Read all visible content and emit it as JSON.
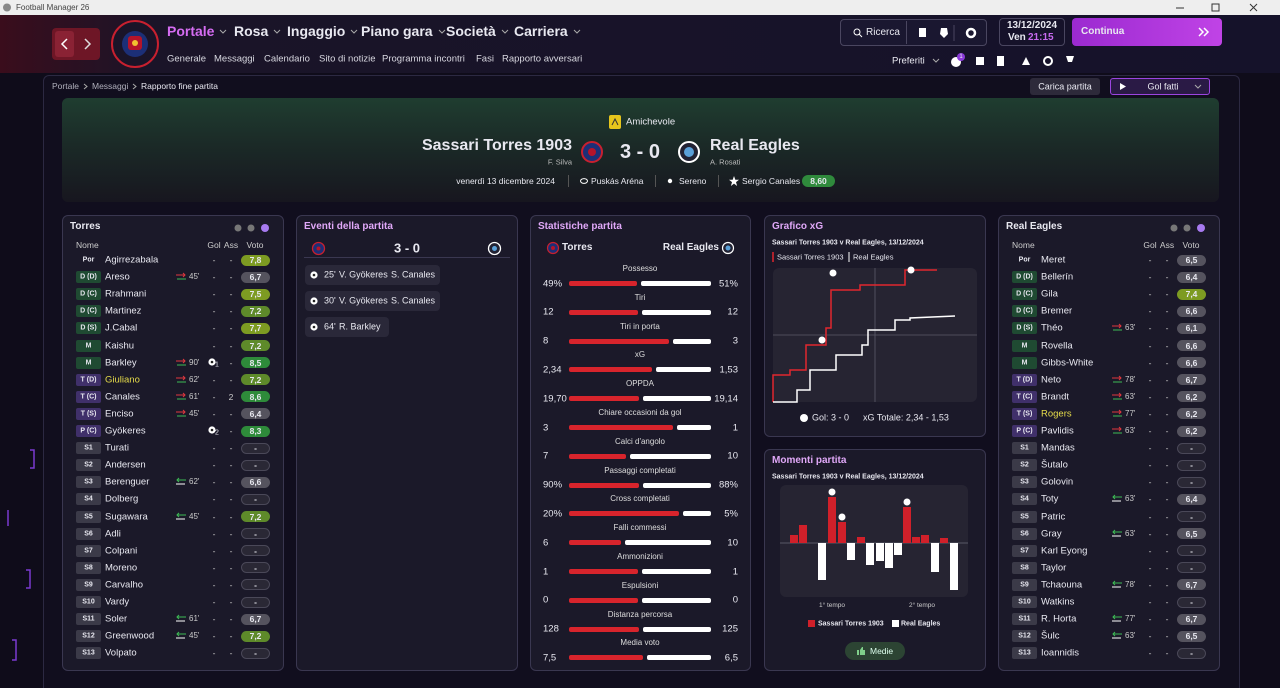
{
  "window": {
    "title": "Football Manager 26"
  },
  "nav": {
    "menus": [
      "Portale",
      "Rosa",
      "Ingaggio",
      "Piano gara",
      "Società",
      "Carriera"
    ],
    "submenu": [
      "Generale",
      "Messaggi",
      "Calendario",
      "Sito di notizie",
      "Programma incontri",
      "Fasi",
      "Rapporto avversari"
    ],
    "search": "Ricerca",
    "date": "13/12/2024",
    "day": "Ven",
    "time": "21:15",
    "continue": "Continua",
    "favorites": "Preferiti",
    "badge": "1"
  },
  "breadcrumb": [
    "Portale",
    "Messaggi",
    "Rapporto fine partita"
  ],
  "actions": {
    "load_match": "Carica partita",
    "goals": "Gol fatti"
  },
  "match": {
    "competition": "Amichevole",
    "home": "Sassari Torres 1903",
    "home_manager": "F. Silva",
    "score": "3 - 0",
    "away": "Real Eagles",
    "away_manager": "A. Rosati",
    "date": "venerdì 13 dicembre 2024",
    "stadium": "Puskás Aréna",
    "weather": "Sereno",
    "player_of_match": "Sergio Canales",
    "pom_rating": "8,60"
  },
  "lineup_columns": [
    "Nome",
    "Gol",
    "Ass",
    "Voto"
  ],
  "home_lineup": {
    "title": "Torres",
    "players": [
      {
        "pos": "Por",
        "name": "Agirrezabala",
        "goals": "-",
        "assists": "-",
        "rating": "7,8"
      },
      {
        "pos": "D (D)",
        "name": "Areso",
        "sub": "45'",
        "goals": "-",
        "assists": "-",
        "rating": "6,7"
      },
      {
        "pos": "D (C)",
        "name": "Rrahmani",
        "goals": "-",
        "assists": "-",
        "rating": "7,5"
      },
      {
        "pos": "D (C)",
        "name": "Martinez",
        "goals": "-",
        "assists": "-",
        "rating": "7,2"
      },
      {
        "pos": "D (S)",
        "name": "J.Cabal",
        "goals": "-",
        "assists": "-",
        "rating": "7,7"
      },
      {
        "pos": "M",
        "name": "Kaishu",
        "goals": "-",
        "assists": "-",
        "rating": "7,2"
      },
      {
        "pos": "M",
        "name": "Barkley",
        "sub": "90'",
        "goals": "1",
        "assists": "-",
        "rating": "8,5"
      },
      {
        "pos": "T (D)",
        "name": "Giuliano",
        "highlight": true,
        "sub": "62'",
        "goals": "-",
        "assists": "-",
        "rating": "7,2"
      },
      {
        "pos": "T (C)",
        "name": "Canales",
        "sub": "61'",
        "goals": "-",
        "assists": "2",
        "rating": "8,6"
      },
      {
        "pos": "T (S)",
        "name": "Enciso",
        "sub": "45'",
        "goals": "-",
        "assists": "-",
        "rating": "6,4"
      },
      {
        "pos": "P (C)",
        "name": "Gyökeres",
        "goals": "2",
        "assists": "-",
        "rating": "8,3"
      },
      {
        "pos": "S1",
        "name": "Turati",
        "goals": "-",
        "assists": "-",
        "rating": "-"
      },
      {
        "pos": "S2",
        "name": "Andersen",
        "goals": "-",
        "assists": "-",
        "rating": "-"
      },
      {
        "pos": "S3",
        "name": "Berenguer",
        "sub": "62'",
        "goals": "-",
        "assists": "-",
        "rating": "6,6"
      },
      {
        "pos": "S4",
        "name": "Dolberg",
        "goals": "-",
        "assists": "-",
        "rating": "-"
      },
      {
        "pos": "S5",
        "name": "Sugawara",
        "sub": "45'",
        "goals": "-",
        "assists": "-",
        "rating": "7,2"
      },
      {
        "pos": "S6",
        "name": "Adli",
        "goals": "-",
        "assists": "-",
        "rating": "-"
      },
      {
        "pos": "S7",
        "name": "Colpani",
        "goals": "-",
        "assists": "-",
        "rating": "-"
      },
      {
        "pos": "S8",
        "name": "Moreno",
        "goals": "-",
        "assists": "-",
        "rating": "-"
      },
      {
        "pos": "S9",
        "name": "Carvalho",
        "goals": "-",
        "assists": "-",
        "rating": "-"
      },
      {
        "pos": "S10",
        "name": "Vardy",
        "goals": "-",
        "assists": "-",
        "rating": "-"
      },
      {
        "pos": "S11",
        "name": "Soler",
        "sub": "61'",
        "goals": "-",
        "assists": "-",
        "rating": "6,7"
      },
      {
        "pos": "S12",
        "name": "Greenwood",
        "sub": "45'",
        "goals": "-",
        "assists": "-",
        "rating": "7,2"
      },
      {
        "pos": "S13",
        "name": "Volpato",
        "goals": "-",
        "assists": "-",
        "rating": "-"
      }
    ]
  },
  "away_lineup": {
    "title": "Real Eagles",
    "players": [
      {
        "pos": "Por",
        "name": "Meret",
        "goals": "-",
        "assists": "-",
        "rating": "6,5"
      },
      {
        "pos": "D (D)",
        "name": "Bellerín",
        "goals": "-",
        "assists": "-",
        "rating": "6,4"
      },
      {
        "pos": "D (C)",
        "name": "Gila",
        "goals": "-",
        "assists": "-",
        "rating": "7,4"
      },
      {
        "pos": "D (C)",
        "name": "Bremer",
        "goals": "-",
        "assists": "-",
        "rating": "6,6"
      },
      {
        "pos": "D (S)",
        "name": "Théo",
        "sub": "63'",
        "goals": "-",
        "assists": "-",
        "rating": "6,1"
      },
      {
        "pos": "M",
        "name": "Rovella",
        "goals": "-",
        "assists": "-",
        "rating": "6,6"
      },
      {
        "pos": "M",
        "name": "Gibbs-White",
        "goals": "-",
        "assists": "-",
        "rating": "6,6"
      },
      {
        "pos": "T (D)",
        "name": "Neto",
        "sub": "78'",
        "goals": "-",
        "assists": "-",
        "rating": "6,7"
      },
      {
        "pos": "T (C)",
        "name": "Brandt",
        "sub": "63'",
        "goals": "-",
        "assists": "-",
        "rating": "6,2"
      },
      {
        "pos": "T (S)",
        "name": "Rogers",
        "highlight": true,
        "sub": "77'",
        "goals": "-",
        "assists": "-",
        "rating": "6,2"
      },
      {
        "pos": "P (C)",
        "name": "Pavlidis",
        "sub": "63'",
        "goals": "-",
        "assists": "-",
        "rating": "6,2"
      },
      {
        "pos": "S1",
        "name": "Mandas",
        "goals": "-",
        "assists": "-",
        "rating": "-"
      },
      {
        "pos": "S2",
        "name": "Šutalo",
        "goals": "-",
        "assists": "-",
        "rating": "-"
      },
      {
        "pos": "S3",
        "name": "Golovin",
        "goals": "-",
        "assists": "-",
        "rating": "-"
      },
      {
        "pos": "S4",
        "name": "Toty",
        "sub": "63'",
        "goals": "-",
        "assists": "-",
        "rating": "6,4"
      },
      {
        "pos": "S5",
        "name": "Patric",
        "goals": "-",
        "assists": "-",
        "rating": "-"
      },
      {
        "pos": "S6",
        "name": "Gray",
        "sub": "63'",
        "goals": "-",
        "assists": "-",
        "rating": "6,5"
      },
      {
        "pos": "S7",
        "name": "Karl Eyong",
        "goals": "-",
        "assists": "-",
        "rating": "-"
      },
      {
        "pos": "S8",
        "name": "Taylor",
        "goals": "-",
        "assists": "-",
        "rating": "-"
      },
      {
        "pos": "S9",
        "name": "Tchaouna",
        "sub": "78'",
        "goals": "-",
        "assists": "-",
        "rating": "6,7"
      },
      {
        "pos": "S10",
        "name": "Watkins",
        "goals": "-",
        "assists": "-",
        "rating": "-"
      },
      {
        "pos": "S11",
        "name": "R. Horta",
        "sub": "77'",
        "goals": "-",
        "assists": "-",
        "rating": "6,7"
      },
      {
        "pos": "S12",
        "name": "Šulc",
        "sub": "63'",
        "goals": "-",
        "assists": "-",
        "rating": "6,5"
      },
      {
        "pos": "S13",
        "name": "Ioannidis",
        "goals": "-",
        "assists": "-",
        "rating": "-"
      }
    ]
  },
  "events": {
    "title": "Eventi della partita",
    "score": "3 - 0",
    "goals": [
      {
        "minute": "25'",
        "scorer": "V. Gyökeres",
        "assist": "S. Canales"
      },
      {
        "minute": "30'",
        "scorer": "V. Gyökeres",
        "assist": "S. Canales"
      },
      {
        "minute": "64'",
        "scorer": "R. Barkley"
      }
    ]
  },
  "stats": {
    "title": "Statistiche partita",
    "home": "Torres",
    "away": "Real Eagles",
    "rows": [
      {
        "label": "Possesso",
        "home": "49%",
        "away": "51%"
      },
      {
        "label": "Tiri",
        "home": "12",
        "away": "12"
      },
      {
        "label": "Tiri in porta",
        "home": "8",
        "away": "3"
      },
      {
        "label": "xG",
        "home": "2,34",
        "away": "1,53"
      },
      {
        "label": "OPPDA",
        "home": "19,70",
        "away": "19,14"
      },
      {
        "label": "Chiare occasioni da gol",
        "home": "3",
        "away": "1"
      },
      {
        "label": "Calci d'angolo",
        "home": "7",
        "away": "10"
      },
      {
        "label": "Passaggi completati",
        "home": "90%",
        "away": "88%"
      },
      {
        "label": "Cross completati",
        "home": "20%",
        "away": "5%"
      },
      {
        "label": "Falli commessi",
        "home": "6",
        "away": "10"
      },
      {
        "label": "Ammonizioni",
        "home": "1",
        "away": "1"
      },
      {
        "label": "Espulsioni",
        "home": "0",
        "away": "0"
      },
      {
        "label": "Distanza percorsa",
        "home": "128",
        "away": "125"
      },
      {
        "label": "Media voto",
        "home": "7,5",
        "away": "6,5"
      }
    ]
  },
  "xg": {
    "title": "Grafico xG",
    "subtitle": "Sassari Torres 1903 v Real Eagles, 13/12/2024",
    "legend": [
      "Sassari Torres 1903",
      "Real Eagles"
    ],
    "goals": "Gol: 3 - 0",
    "total": "xG Totale: 2,34 - 1,53"
  },
  "momentum": {
    "title": "Momenti partita",
    "subtitle": "Sassari Torres 1903 v Real Eagles, 13/12/2024",
    "halves": [
      "1° tempo",
      "2° tempo"
    ],
    "legend": [
      "Sassari Torres 1903",
      "Real Eagles"
    ],
    "button": "Medie"
  }
}
